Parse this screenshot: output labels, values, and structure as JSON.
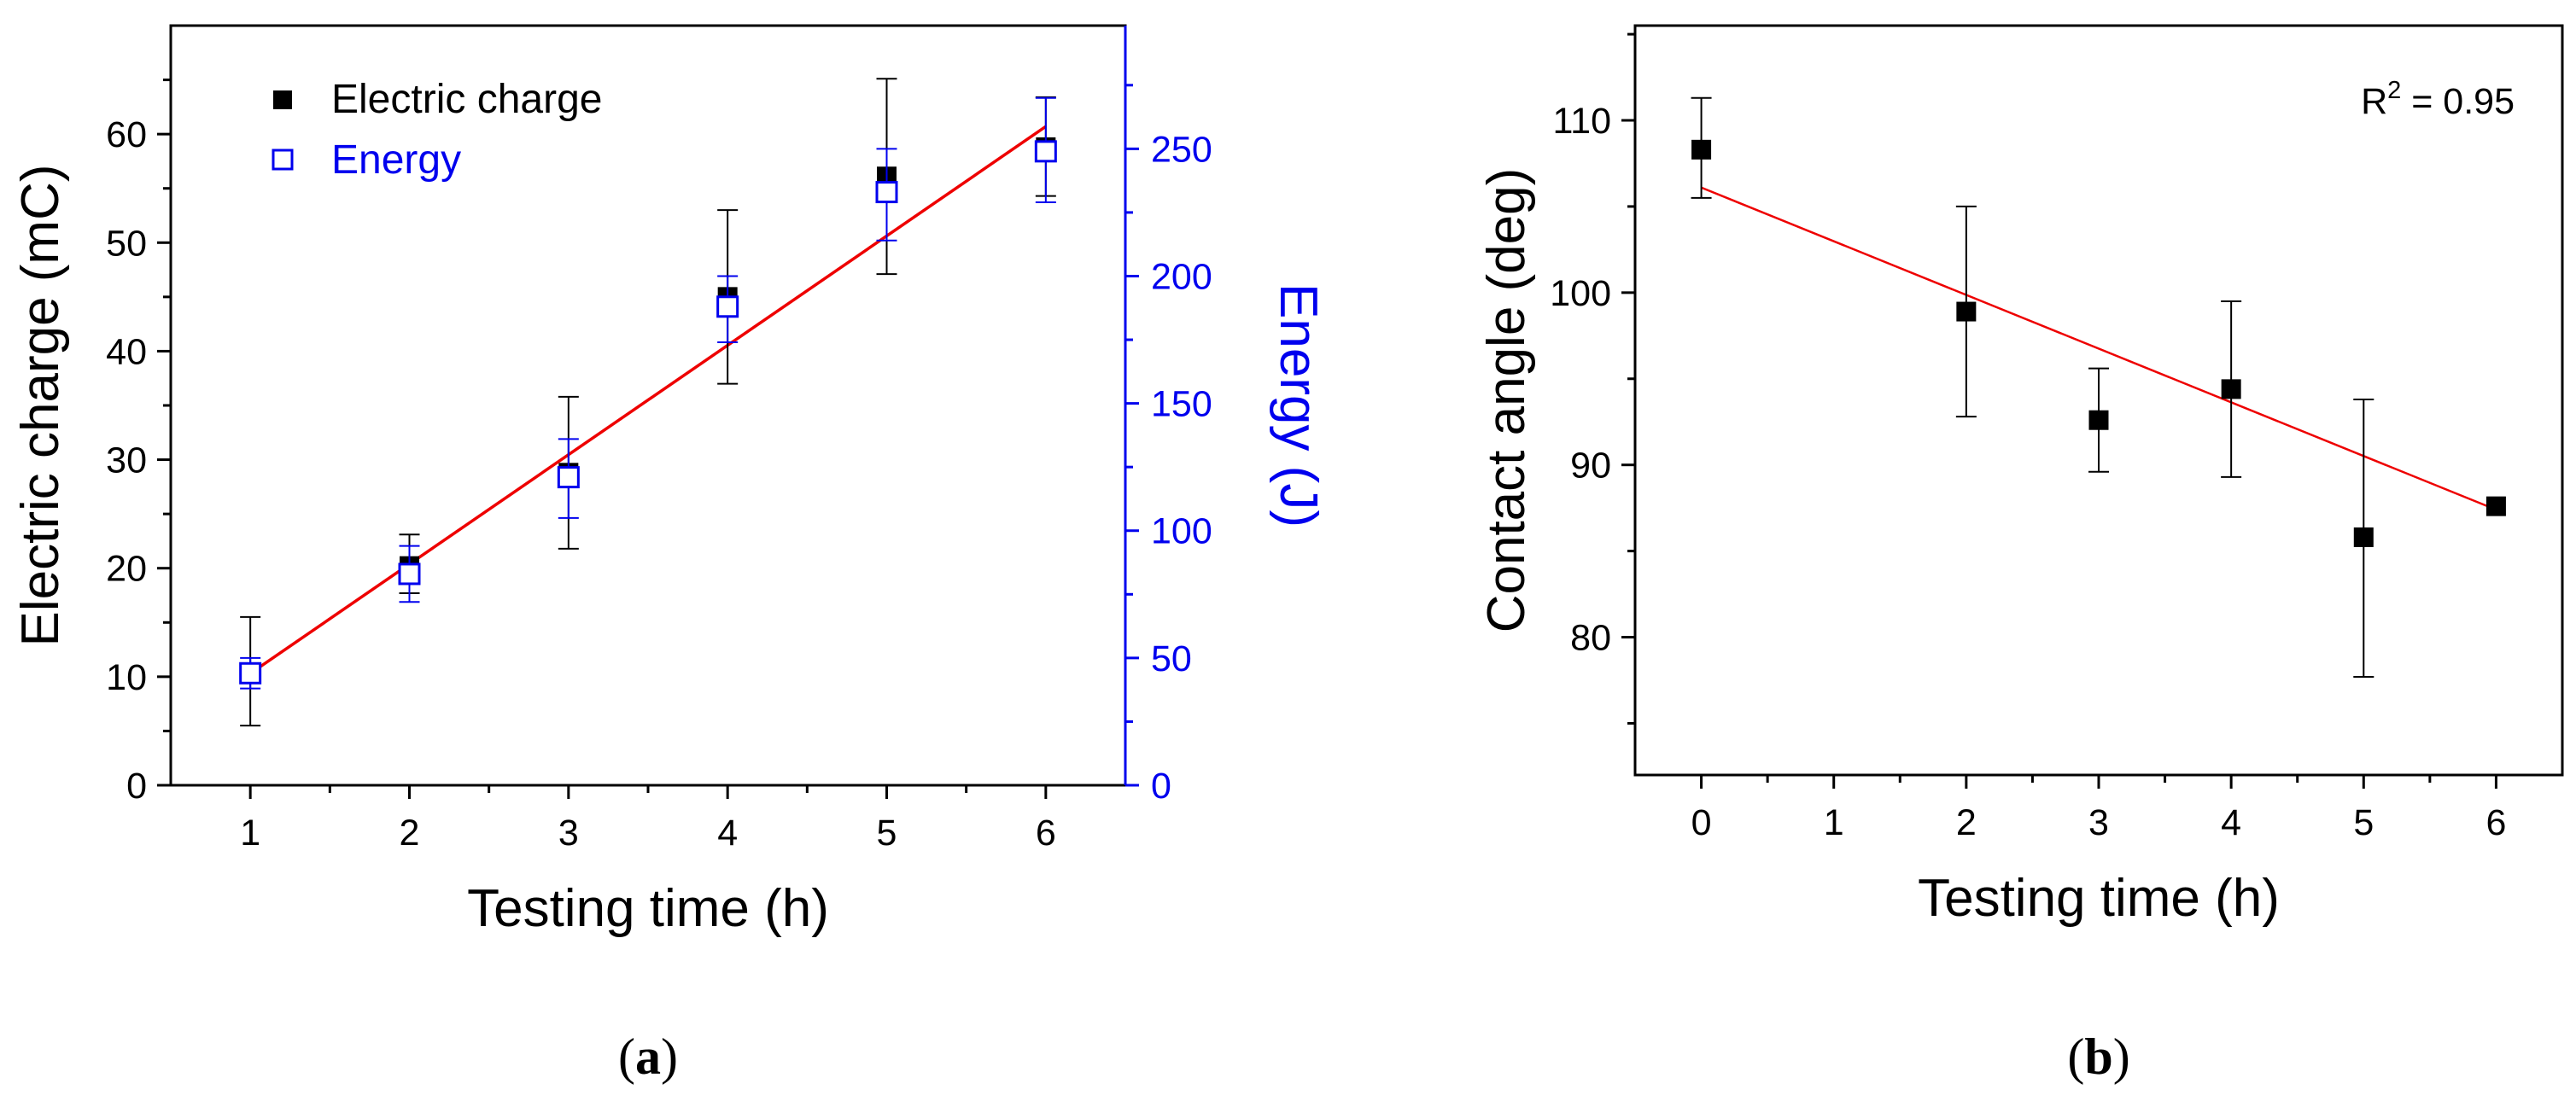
{
  "colors": {
    "axis": "#000000",
    "energy": "#0000ee",
    "fit": "#ee0000",
    "marker": "#000000"
  },
  "chart_data": [
    {
      "id": "a",
      "type": "scatter",
      "caption": {
        "open": "(",
        "letter": "a",
        "close": ")"
      },
      "title": "",
      "xlabel": "Testing time (h)",
      "ylabel": "Electric charge (mC)",
      "y2label": "Energy (J)",
      "xlim": [
        0.5,
        6.5
      ],
      "ylim": [
        0,
        70
      ],
      "y2lim": [
        0,
        298.4
      ],
      "xticks": [
        1,
        2,
        3,
        4,
        5,
        6
      ],
      "xtick_labels": [
        "1",
        "2",
        "3",
        "4",
        "5",
        "6"
      ],
      "yticks": [
        0,
        10,
        20,
        30,
        40,
        50,
        60
      ],
      "ytick_labels": [
        "0",
        "10",
        "20",
        "30",
        "40",
        "50",
        "60"
      ],
      "y2ticks": [
        0,
        50,
        100,
        150,
        200,
        250
      ],
      "y2tick_labels": [
        "0",
        "50",
        "100",
        "150",
        "200",
        "250"
      ],
      "legend_position": "top-left",
      "series": [
        {
          "name": "Electric charge",
          "axis": "left",
          "marker": "filled-square",
          "x": [
            1,
            2,
            3,
            4,
            5,
            6
          ],
          "y": [
            10.4,
            20.2,
            28.8,
            45.0,
            56.1,
            58.8
          ],
          "err_low": [
            5.5,
            17.7,
            21.8,
            37.0,
            47.1,
            54.3
          ],
          "err_high": [
            15.5,
            23.1,
            35.8,
            53.0,
            65.1,
            63.4
          ]
        },
        {
          "name": "Energy",
          "axis": "right",
          "marker": "open-square",
          "x": [
            1,
            2,
            3,
            4,
            5,
            6
          ],
          "y": [
            44,
            83,
            121,
            188,
            233,
            249
          ],
          "err_low": [
            38,
            72,
            105,
            174,
            214,
            229
          ],
          "err_high": [
            50,
            94,
            136,
            200,
            250,
            270
          ]
        }
      ],
      "fit": {
        "x": [
          1,
          6
        ],
        "y": [
          10.3,
          60.7
        ]
      },
      "annotations": []
    },
    {
      "id": "b",
      "type": "scatter",
      "caption": {
        "open": "(",
        "letter": "b",
        "close": ")"
      },
      "title": "",
      "xlabel": "Testing time (h)",
      "ylabel": "Contact angle (deg)",
      "xlim": [
        -0.5,
        6.5
      ],
      "ylim": [
        72,
        115.5
      ],
      "xticks": [
        0,
        1,
        2,
        3,
        4,
        5,
        6
      ],
      "xtick_labels": [
        "0",
        "1",
        "2",
        "3",
        "4",
        "5",
        "6"
      ],
      "yticks": [
        80,
        90,
        100,
        110
      ],
      "ytick_labels": [
        "80",
        "90",
        "100",
        "110"
      ],
      "series": [
        {
          "name": "Contact angle",
          "axis": "left",
          "marker": "filled-square",
          "x": [
            0,
            2,
            3,
            4,
            5,
            6
          ],
          "y": [
            108.3,
            98.9,
            92.6,
            94.4,
            85.8,
            87.6
          ],
          "err_low": [
            105.5,
            92.8,
            89.6,
            89.3,
            77.7,
            87.6
          ],
          "err_high": [
            111.3,
            105.0,
            95.6,
            99.5,
            93.8,
            87.6
          ]
        }
      ],
      "fit": {
        "x": [
          0,
          6
        ],
        "y": [
          106.1,
          87.4
        ]
      },
      "annotations": [
        {
          "prefix": "R",
          "sup": "2",
          "suffix": " = 0.95",
          "position": "top-right"
        }
      ]
    }
  ]
}
